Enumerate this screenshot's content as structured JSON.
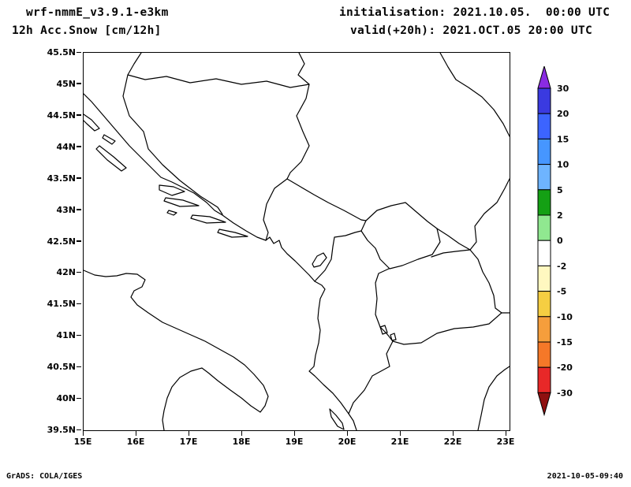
{
  "header": {
    "model_line": "wrf-nmmE_v3.9.1-e3km",
    "variable_line": "12h Acc.Snow [cm/12h]",
    "init_line": "initialisation: 2021.10.05.  00:00 UTC",
    "valid_line": "valid(+20h): 2021.OCT.05 20:00 UTC"
  },
  "footer": {
    "credit": "GrADS: COLA/IGES",
    "timestamp": "2021-10-05-09:40"
  },
  "chart_data": {
    "type": "map",
    "title": "12h Acc.Snow [cm/12h]",
    "model": "wrf-nmmE_v3.9.1-e3km",
    "initialization": "2021.10.05. 00:00 UTC",
    "valid": "2021.OCT.05 20:00 UTC (+20h)",
    "region": "Adriatic / Balkans",
    "grid": false,
    "x_axis": {
      "labels": [
        "15E",
        "16E",
        "17E",
        "18E",
        "19E",
        "20E",
        "21E",
        "22E",
        "23E"
      ],
      "range_deg_east": [
        15,
        23.1
      ]
    },
    "y_axis": {
      "labels": [
        "45.5N",
        "45N",
        "44.5N",
        "44N",
        "43.5N",
        "43N",
        "42.5N",
        "42N",
        "41.5N",
        "41N",
        "40.5N",
        "40N",
        "39.5N"
      ],
      "range_deg_north": [
        39.5,
        45.5
      ]
    },
    "colorbar": {
      "units": "cm/12h",
      "tick_values": [
        30,
        20,
        15,
        10,
        5,
        2,
        0,
        -2,
        -5,
        -10,
        -15,
        -20,
        -30
      ],
      "band_colors_top_to_bottom": [
        "#8A2BE2",
        "#3A3AE0",
        "#3C64FF",
        "#4696FF",
        "#6EB4FF",
        "#14A014",
        "#90E890",
        "#FFFFFF",
        "#FFF8C0",
        "#F5CE42",
        "#F59E3C",
        "#F57828",
        "#E82828",
        "#8F1010"
      ]
    },
    "field_note": "No shaded accumulation values appear inside the domain; only coastlines and country borders are drawn."
  }
}
